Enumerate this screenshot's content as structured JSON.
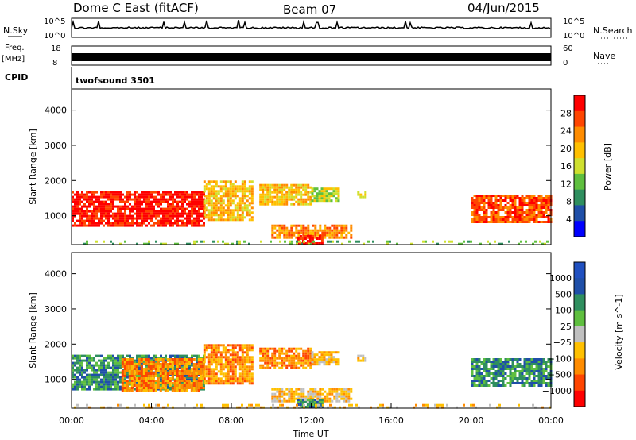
{
  "header": {
    "station": "Dome C East (fitACF)",
    "beam": "Beam 07",
    "date": "04/Jun/2015"
  },
  "top_panels": {
    "nsky_label": "N.Sky",
    "nsky_ticks": [
      "10^5",
      "10^0"
    ],
    "nsearch_label": "N.Search",
    "nsearch_ticks": [
      "10^5",
      "10^0"
    ],
    "freq_label": "Freq.",
    "freq_unit": "[MHz]",
    "freq_ticks": [
      "18",
      "8"
    ],
    "nave_label": "Nave",
    "nave_ticks": [
      "60",
      "0"
    ],
    "cpid_label": "CPID",
    "cpid_value": "twofsound 3501"
  },
  "colors": {
    "power": [
      "#0000ff",
      "#1f4fa8",
      "#2f8f5f",
      "#5fbf3f",
      "#cfe02f",
      "#ffc000",
      "#ff8c00",
      "#ff4500",
      "#ff0000"
    ],
    "velocity": [
      "#ff0000",
      "#ff4500",
      "#ff8c00",
      "#ffc000",
      "#c0c0c0",
      "#5fbf3f",
      "#2f8f5f",
      "#1f4fa8",
      "#2050c0"
    ]
  },
  "chart_data": [
    {
      "type": "heatmap",
      "panel": "power",
      "ylabel": "Slant Range [km]",
      "xlabel": "",
      "colorbar_label": "Power [dB]",
      "colorbar_ticks": [
        "28",
        "24",
        "20",
        "16",
        "12",
        "8",
        "4"
      ],
      "xlim": [
        0,
        24
      ],
      "ylim": [
        180,
        4600
      ],
      "yticks": [
        "1000",
        "2000",
        "3000",
        "4000"
      ],
      "regions": [
        {
          "t0": 0.0,
          "t1": 6.6,
          "r0": 700,
          "r1": 1700,
          "color_index": 8
        },
        {
          "t0": 6.6,
          "t1": 9.0,
          "r0": 900,
          "r1": 2000,
          "color_index": 5
        },
        {
          "t0": 9.4,
          "t1": 12.0,
          "r0": 1300,
          "r1": 1900,
          "color_index": 5
        },
        {
          "t0": 12.0,
          "t1": 13.4,
          "r0": 1400,
          "r1": 1800,
          "color_index": 4
        },
        {
          "t0": 14.3,
          "t1": 14.7,
          "r0": 1500,
          "r1": 1700,
          "color_index": 4
        },
        {
          "t0": 10.0,
          "t1": 14.0,
          "r0": 400,
          "r1": 750,
          "color_index": 6
        },
        {
          "t0": 11.3,
          "t1": 12.5,
          "r0": 200,
          "r1": 450,
          "color_index": 8
        },
        {
          "t0": 20.0,
          "t1": 24.0,
          "r0": 800,
          "r1": 1600,
          "color_index": 7
        },
        {
          "t0": 0.0,
          "t1": 24.0,
          "r0": 180,
          "r1": 300,
          "color_index": 3
        }
      ]
    },
    {
      "type": "heatmap",
      "panel": "velocity",
      "ylabel": "Slant Range [km]",
      "xlabel": "Time UT",
      "colorbar_label": "Velocity [m s^-1]",
      "colorbar_ticks": [
        "1000",
        "500",
        "100",
        "25",
        "−25",
        "−100",
        "−500",
        "−1000"
      ],
      "xlim": [
        0,
        24
      ],
      "ylim": [
        180,
        4600
      ],
      "yticks": [
        "1000",
        "2000",
        "3000",
        "4000"
      ],
      "xticks": [
        "00:00",
        "04:00",
        "08:00",
        "12:00",
        "16:00",
        "20:00",
        "00:00"
      ],
      "regions": [
        {
          "t0": 0.0,
          "t1": 6.6,
          "r0": 700,
          "r1": 1700,
          "color_index": 6
        },
        {
          "t0": 2.5,
          "t1": 6.6,
          "r0": 700,
          "r1": 1600,
          "color_index": 2
        },
        {
          "t0": 6.6,
          "t1": 9.0,
          "r0": 900,
          "r1": 2000,
          "color_index": 2
        },
        {
          "t0": 9.4,
          "t1": 12.0,
          "r0": 1300,
          "r1": 1900,
          "color_index": 2
        },
        {
          "t0": 12.0,
          "t1": 13.4,
          "r0": 1400,
          "r1": 1800,
          "color_index": 3
        },
        {
          "t0": 14.3,
          "t1": 14.7,
          "r0": 1500,
          "r1": 1700,
          "color_index": 3
        },
        {
          "t0": 10.0,
          "t1": 14.0,
          "r0": 400,
          "r1": 750,
          "color_index": 3
        },
        {
          "t0": 11.3,
          "t1": 12.5,
          "r0": 200,
          "r1": 450,
          "color_index": 6
        },
        {
          "t0": 20.0,
          "t1": 24.0,
          "r0": 800,
          "r1": 1600,
          "color_index": 6
        },
        {
          "t0": 0.0,
          "t1": 24.0,
          "r0": 180,
          "r1": 300,
          "color_index": 3
        }
      ]
    }
  ]
}
